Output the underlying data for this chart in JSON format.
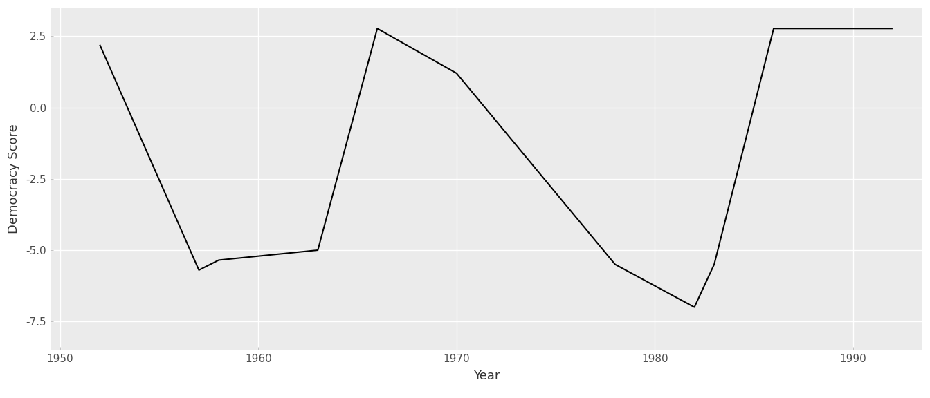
{
  "years": [
    1952,
    1957,
    1958,
    1963,
    1966,
    1970,
    1978,
    1982,
    1983,
    1986,
    1992
  ],
  "scores": [
    2.2,
    -5.7,
    -5.35,
    -5.0,
    2.77,
    1.2,
    -5.5,
    -7.0,
    -5.5,
    2.77,
    2.77
  ],
  "xlabel": "Year",
  "ylabel": "Democracy Score",
  "panel_background_color": "#EBEBEB",
  "figure_background_color": "#FFFFFF",
  "line_color": "#000000",
  "line_width": 1.5,
  "xlim": [
    1949.5,
    1993.5
  ],
  "ylim": [
    -8.5,
    3.5
  ],
  "xticks": [
    1950,
    1960,
    1970,
    1980,
    1990
  ],
  "yticks": [
    2.5,
    0.0,
    -2.5,
    -5.0,
    -7.5
  ],
  "ytick_labels": [
    "2.5",
    "0.0",
    "-2.5",
    "-5.0",
    "-7.5"
  ],
  "grid_color": "#FFFFFF",
  "grid_linewidth": 1.0,
  "tick_label_color": "#4D4D4D",
  "axis_label_color": "#333333",
  "label_fontsize": 13,
  "tick_fontsize": 11,
  "figure_width": 13.44,
  "figure_height": 5.76,
  "dpi": 100
}
